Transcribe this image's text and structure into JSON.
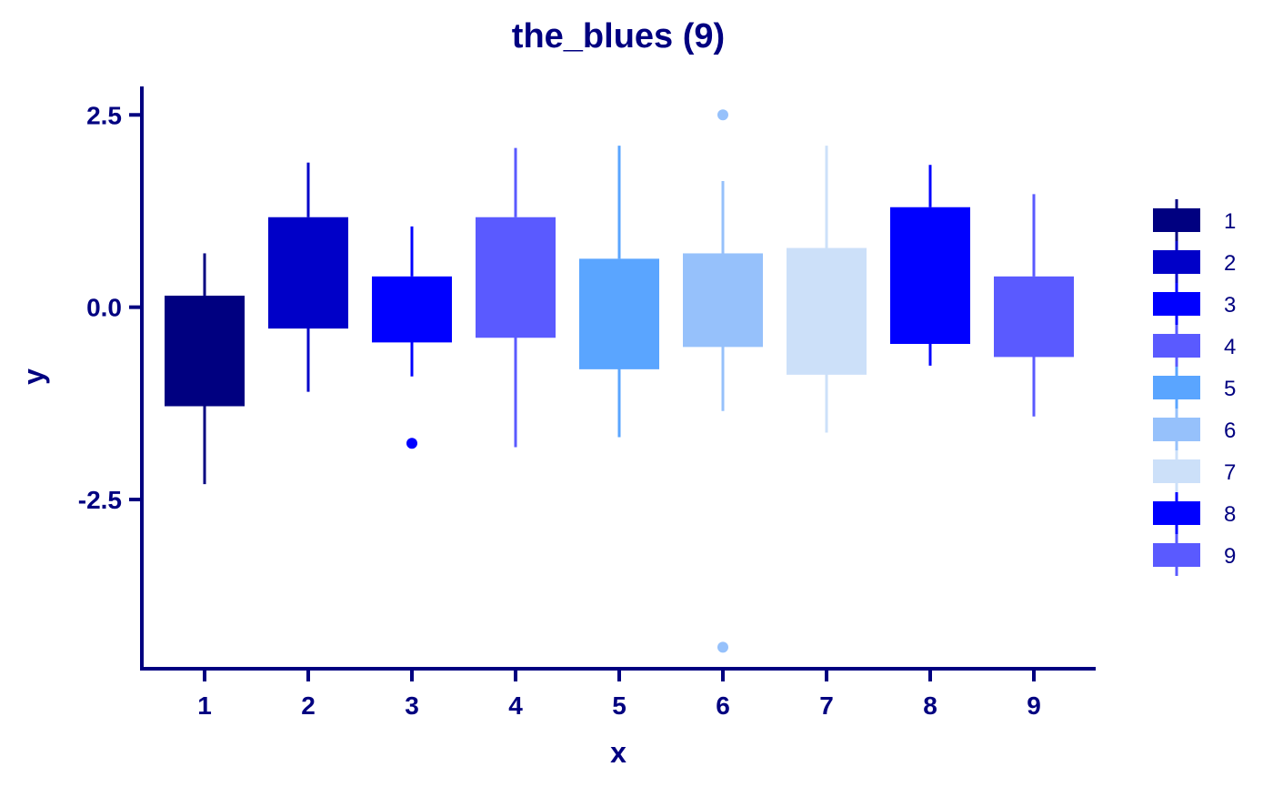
{
  "chart_data": {
    "type": "boxplot",
    "title": "the_blues (9)",
    "xlabel": "x",
    "ylabel": "y",
    "categories": [
      "1",
      "2",
      "3",
      "4",
      "5",
      "6",
      "7",
      "8",
      "9"
    ],
    "ylim": [
      -4.7,
      2.87
    ],
    "yticks": [
      2.5,
      0.0,
      -2.5
    ],
    "ytick_labels": [
      "2.5",
      "0.0",
      "-2.5"
    ],
    "grid": false,
    "legend": {
      "position": "right",
      "entries": [
        "1",
        "2",
        "3",
        "4",
        "5",
        "6",
        "7",
        "8",
        "9"
      ]
    },
    "boxes": [
      {
        "category": "1",
        "lower_whisker": -2.3,
        "q1": -1.27,
        "median": -1.27,
        "q3": 0.15,
        "upper_whisker": 0.7,
        "outliers": [],
        "color": "#000080"
      },
      {
        "category": "2",
        "lower_whisker": -1.1,
        "q1": -0.26,
        "median": -0.26,
        "q3": 1.17,
        "upper_whisker": 1.88,
        "outliers": [],
        "color": "#0000C8"
      },
      {
        "category": "3",
        "lower_whisker": -0.9,
        "q1": -0.44,
        "median": -0.44,
        "q3": 0.4,
        "upper_whisker": 1.05,
        "outliers": [
          -1.77
        ],
        "color": "#0000FF"
      },
      {
        "category": "4",
        "lower_whisker": -1.82,
        "q1": -0.38,
        "median": -0.38,
        "q3": 1.17,
        "upper_whisker": 2.07,
        "outliers": [],
        "color": "#5A5AFF"
      },
      {
        "category": "5",
        "lower_whisker": -1.69,
        "q1": -0.79,
        "median": -0.79,
        "q3": 0.63,
        "upper_whisker": 2.1,
        "outliers": [],
        "color": "#5AA5FF"
      },
      {
        "category": "6",
        "lower_whisker": -1.35,
        "q1": -0.5,
        "median": -0.5,
        "q3": 0.7,
        "upper_whisker": 1.64,
        "outliers": [
          2.5,
          -4.42
        ],
        "color": "#96C1FB"
      },
      {
        "category": "7",
        "lower_whisker": -1.63,
        "q1": -0.86,
        "median": -0.86,
        "q3": 0.77,
        "upper_whisker": 2.1,
        "outliers": [],
        "color": "#CCE0F9"
      },
      {
        "category": "8",
        "lower_whisker": -0.76,
        "q1": -0.46,
        "median": -0.46,
        "q3": 1.3,
        "upper_whisker": 1.85,
        "outliers": [],
        "color": "#0000FF"
      },
      {
        "category": "9",
        "lower_whisker": -1.42,
        "q1": -0.63,
        "median": -0.63,
        "q3": 0.4,
        "upper_whisker": 1.47,
        "outliers": [],
        "color": "#5A5AFF"
      }
    ],
    "colors": {
      "axis": "#000080",
      "text": "#000080",
      "background": "#FFFFFF"
    }
  }
}
